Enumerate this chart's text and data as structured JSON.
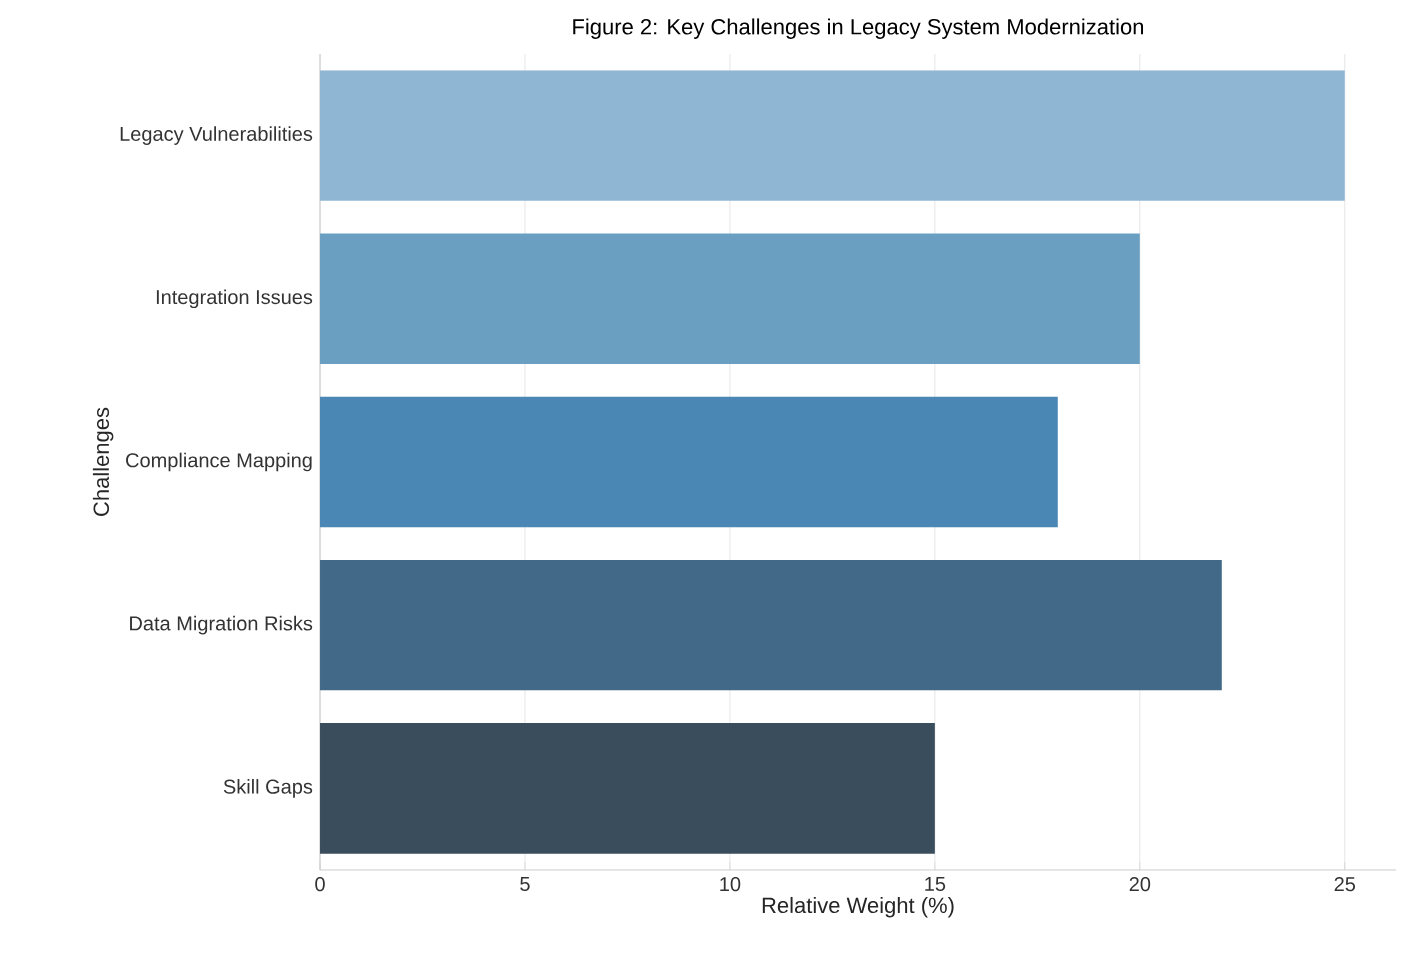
{
  "chart_data": {
    "type": "bar",
    "orientation": "horizontal",
    "title": "Figure 2: Key Challenges in Legacy System Modernization",
    "xlabel": "Relative Weight (%)",
    "ylabel": "Challenges",
    "categories": [
      "Legacy Vulnerabilities",
      "Integration Issues",
      "Compliance Mapping",
      "Data Migration Risks",
      "Skill Gaps"
    ],
    "values": [
      25,
      20,
      18,
      22,
      15
    ],
    "colors": [
      "#8fb7d3",
      "#6a9fc2",
      "#4a87b5",
      "#426a88",
      "#3a4d5c"
    ],
    "xlim": [
      0,
      26.25
    ],
    "xticks": [
      0,
      5,
      10,
      15,
      20,
      25
    ],
    "grid": "x"
  }
}
